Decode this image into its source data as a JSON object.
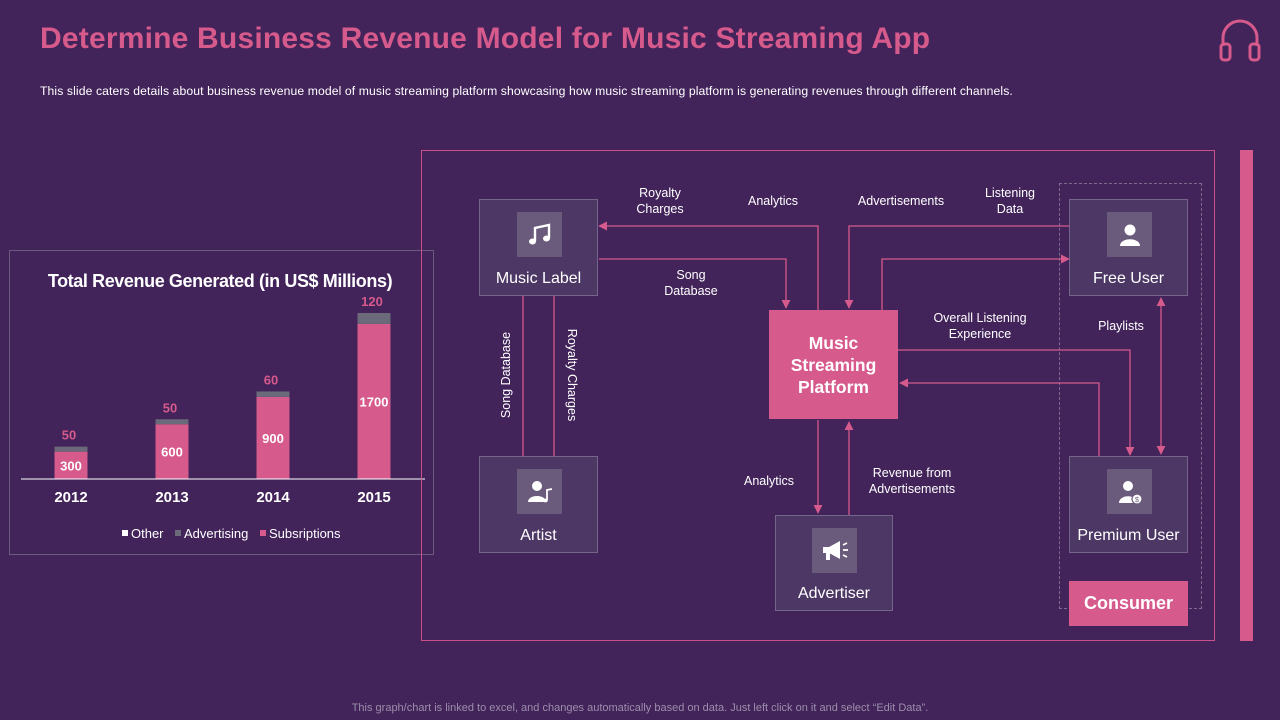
{
  "slide": {
    "title": "Determine Business Revenue Model for Music Streaming App",
    "subtitle": "This slide caters details about business revenue  model of music streaming platform showcasing how music streaming platform is generating revenues through different channels.",
    "footer": "This graph/chart is linked to excel, and changes automatically based on data. Just left click on it and select “Edit Data”.",
    "accent_color": "#d65a8c",
    "background_color": "#42235a",
    "top_right_icon": "headphones-icon"
  },
  "chart_data": {
    "type": "bar",
    "stacked": true,
    "title": "Total Revenue Generated (in US$ Millions)",
    "categories": [
      "2012",
      "2013",
      "2014",
      "2015"
    ],
    "series": [
      {
        "name": "Subsriptions",
        "values": [
          300,
          600,
          900,
          1700
        ],
        "color": "#d65a8c"
      },
      {
        "name": "Advertising",
        "values": [
          50,
          50,
          60,
          120
        ],
        "color": "#6a6a7a"
      },
      {
        "name": "Other",
        "values": [
          0,
          0,
          0,
          0
        ],
        "color": "#ffffff"
      }
    ],
    "legend_order": [
      "Other",
      "Advertising",
      "Subsriptions"
    ],
    "legend_position": "bottom",
    "grid": false
  },
  "diagram": {
    "nodes": {
      "music_label": {
        "label": "Music Label",
        "icon": "music-note-icon"
      },
      "artist": {
        "label": "Artist",
        "icon": "artist-icon"
      },
      "platform": {
        "label": "Music Streaming Platform"
      },
      "advertiser": {
        "label": "Advertiser",
        "icon": "megaphone-icon"
      },
      "free_user": {
        "label": "Free User",
        "icon": "user-icon"
      },
      "premium_user": {
        "label": "Premium User",
        "icon": "premium-user-icon"
      },
      "consumer": {
        "label": "Consumer"
      }
    },
    "edges": {
      "royalty_charges_top": "Royalty Charges",
      "analytics_top": "Analytics",
      "advertisements": "Advertisements",
      "listening_data": "Listening Data",
      "song_database_top": "Song Database",
      "overall_listening": "Overall Listening Experience",
      "playlists": "Playlists",
      "song_database_vertical": "Song Database",
      "royalty_charges_vertical": "Royalty Charges",
      "analytics_bottom": "Analytics",
      "revenue_from_ads": "Revenue  from Advertisements"
    }
  }
}
